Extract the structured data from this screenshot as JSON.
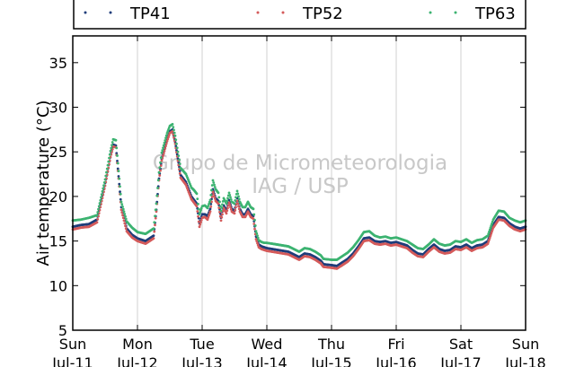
{
  "chart_data": {
    "type": "scatter",
    "ylabel": "Air temperature (°C)",
    "xlabel": "",
    "ylim": [
      5,
      38
    ],
    "y_ticks": [
      5,
      10,
      15,
      20,
      25,
      30,
      35
    ],
    "x_domain_hours": [
      0,
      168
    ],
    "x_ticks": [
      {
        "hour": 0,
        "day": "Sun",
        "date": "Jul-11"
      },
      {
        "hour": 24,
        "day": "Mon",
        "date": "Jul-12"
      },
      {
        "hour": 48,
        "day": "Tue",
        "date": "Jul-13"
      },
      {
        "hour": 72,
        "day": "Wed",
        "date": "Jul-14"
      },
      {
        "hour": 96,
        "day": "Thu",
        "date": "Jul-15"
      },
      {
        "hour": 120,
        "day": "Fri",
        "date": "Jul-16"
      },
      {
        "hour": 144,
        "day": "Sat",
        "date": "Jul-17"
      },
      {
        "hour": 168,
        "day": "Sun",
        "date": "Jul-18"
      }
    ],
    "grid": "vertical",
    "legend_position": "top",
    "watermark": [
      "Grupo de Micrometeorologia",
      "IAG / USP"
    ],
    "series": [
      {
        "name": "TP41",
        "color": "#1f3d7a",
        "x": [
          0,
          3,
          6,
          9,
          12,
          14,
          15,
          16,
          18,
          20,
          22,
          24,
          27,
          30,
          31,
          32,
          33,
          35,
          36,
          37,
          38,
          40,
          42,
          44,
          45,
          46,
          47,
          48,
          49,
          50,
          51,
          52,
          53,
          54,
          55,
          56,
          57,
          58,
          59,
          60,
          61,
          62,
          63,
          64,
          65,
          66,
          67,
          68,
          69,
          70,
          71,
          72,
          76,
          80,
          84,
          86,
          88,
          90,
          92,
          93,
          96,
          98,
          100,
          102,
          104,
          106,
          108,
          110,
          112,
          114,
          116,
          118,
          120,
          124,
          126,
          128,
          130,
          132,
          134,
          136,
          138,
          140,
          142,
          144,
          146,
          148,
          150,
          152,
          154,
          156,
          158,
          160,
          162,
          164,
          166,
          168
        ],
        "y": [
          16.6,
          16.8,
          16.9,
          17.4,
          21.5,
          24.7,
          25.8,
          25.7,
          18.8,
          16.4,
          15.7,
          15.3,
          15.0,
          15.6,
          18.5,
          22.0,
          24.2,
          26.4,
          27.3,
          27.5,
          26.1,
          22.4,
          21.6,
          20.0,
          19.6,
          19.2,
          17.0,
          18.0,
          18.0,
          17.8,
          18.6,
          20.8,
          19.8,
          19.5,
          17.6,
          19.0,
          18.4,
          19.6,
          18.6,
          18.4,
          19.8,
          18.6,
          18.0,
          18.0,
          18.6,
          18.0,
          17.8,
          15.5,
          14.6,
          14.4,
          14.3,
          14.2,
          14.0,
          13.8,
          13.2,
          13.6,
          13.5,
          13.2,
          12.8,
          12.4,
          12.3,
          12.2,
          12.6,
          13.0,
          13.6,
          14.4,
          15.3,
          15.4,
          15.0,
          14.9,
          15.0,
          14.8,
          14.9,
          14.5,
          14.0,
          13.6,
          13.5,
          14.1,
          14.6,
          14.1,
          13.9,
          14.0,
          14.4,
          14.3,
          14.6,
          14.2,
          14.5,
          14.6,
          15.0,
          16.8,
          17.7,
          17.6,
          17.0,
          16.6,
          16.4,
          16.6
        ]
      },
      {
        "name": "TP52",
        "color": "#d45a5a",
        "x": [
          0,
          3,
          6,
          9,
          12,
          14,
          15,
          16,
          18,
          20,
          22,
          24,
          27,
          30,
          31,
          32,
          33,
          35,
          36,
          37,
          38,
          40,
          42,
          44,
          45,
          46,
          47,
          48,
          49,
          50,
          51,
          52,
          53,
          54,
          55,
          56,
          57,
          58,
          59,
          60,
          61,
          62,
          63,
          64,
          65,
          66,
          67,
          68,
          69,
          70,
          71,
          72,
          76,
          80,
          84,
          86,
          88,
          90,
          92,
          93,
          96,
          98,
          100,
          102,
          104,
          106,
          108,
          110,
          112,
          114,
          116,
          118,
          120,
          124,
          126,
          128,
          130,
          132,
          134,
          136,
          138,
          140,
          142,
          144,
          146,
          148,
          150,
          152,
          154,
          156,
          158,
          160,
          162,
          164,
          166,
          168
        ],
        "y": [
          16.3,
          16.5,
          16.6,
          17.1,
          21.2,
          24.4,
          25.6,
          25.5,
          18.5,
          16.1,
          15.4,
          15.0,
          14.7,
          15.3,
          18.3,
          21.8,
          24.0,
          26.2,
          27.1,
          27.3,
          25.9,
          22.1,
          21.3,
          19.7,
          19.3,
          18.9,
          16.6,
          17.6,
          17.7,
          17.4,
          18.3,
          20.5,
          19.5,
          19.2,
          17.3,
          18.7,
          18.1,
          19.3,
          18.3,
          18.1,
          19.5,
          18.3,
          17.7,
          17.7,
          18.3,
          17.7,
          17.5,
          15.2,
          14.3,
          14.1,
          14.0,
          13.9,
          13.7,
          13.5,
          12.9,
          13.3,
          13.2,
          12.9,
          12.5,
          12.1,
          12.0,
          11.9,
          12.3,
          12.7,
          13.3,
          14.1,
          15.0,
          15.1,
          14.7,
          14.6,
          14.7,
          14.5,
          14.6,
          14.2,
          13.7,
          13.3,
          13.2,
          13.8,
          14.3,
          13.8,
          13.6,
          13.7,
          14.1,
          14.0,
          14.3,
          13.9,
          14.2,
          14.3,
          14.7,
          16.5,
          17.4,
          17.3,
          16.7,
          16.3,
          16.1,
          16.3
        ]
      },
      {
        "name": "TP63",
        "color": "#3cb371",
        "x": [
          0,
          3,
          6,
          9,
          12,
          14,
          15,
          16,
          18,
          20,
          22,
          24,
          27,
          30,
          31,
          32,
          33,
          35,
          36,
          37,
          38,
          40,
          42,
          44,
          45,
          46,
          47,
          48,
          49,
          50,
          51,
          52,
          53,
          54,
          55,
          56,
          57,
          58,
          59,
          60,
          61,
          62,
          63,
          64,
          65,
          66,
          67,
          68,
          69,
          70,
          71,
          72,
          76,
          80,
          84,
          86,
          88,
          90,
          92,
          93,
          96,
          98,
          100,
          102,
          104,
          106,
          108,
          110,
          112,
          114,
          116,
          118,
          120,
          124,
          126,
          128,
          130,
          132,
          134,
          136,
          138,
          140,
          142,
          144,
          146,
          148,
          150,
          152,
          154,
          156,
          158,
          160,
          162,
          164,
          166,
          168
        ],
        "y": [
          17.3,
          17.4,
          17.6,
          17.9,
          21.9,
          25.1,
          26.4,
          26.3,
          19.4,
          17.2,
          16.5,
          16.0,
          15.8,
          16.4,
          19.2,
          22.7,
          24.9,
          27.1,
          27.9,
          28.1,
          26.8,
          23.2,
          22.5,
          21.0,
          20.7,
          20.3,
          18.0,
          18.9,
          19.0,
          18.7,
          19.6,
          21.8,
          20.8,
          20.4,
          18.4,
          19.8,
          19.2,
          20.4,
          19.4,
          19.2,
          20.6,
          19.4,
          18.8,
          18.8,
          19.4,
          18.8,
          18.6,
          16.1,
          15.1,
          14.9,
          14.8,
          14.8,
          14.6,
          14.4,
          13.8,
          14.2,
          14.1,
          13.8,
          13.4,
          13.0,
          12.9,
          12.9,
          13.3,
          13.7,
          14.3,
          15.1,
          16.0,
          16.1,
          15.6,
          15.4,
          15.5,
          15.3,
          15.4,
          15.0,
          14.6,
          14.2,
          14.1,
          14.6,
          15.2,
          14.7,
          14.5,
          14.6,
          15.0,
          14.9,
          15.2,
          14.8,
          15.1,
          15.2,
          15.6,
          17.4,
          18.4,
          18.3,
          17.6,
          17.3,
          17.1,
          17.3
        ]
      }
    ]
  }
}
